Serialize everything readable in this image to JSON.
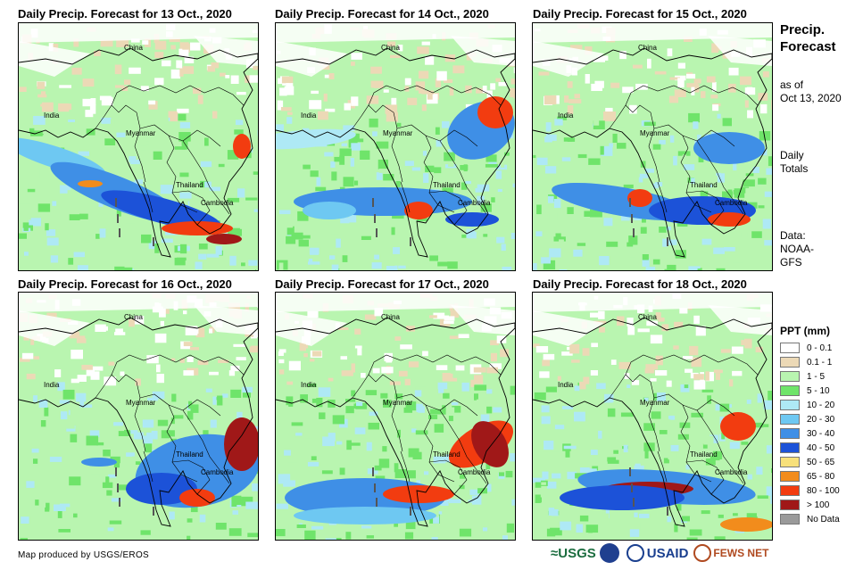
{
  "panels": [
    {
      "title": "Daily Precip. Forecast for 13 Oct., 2020"
    },
    {
      "title": "Daily Precip. Forecast for 14 Oct., 2020"
    },
    {
      "title": "Daily Precip. Forecast for 15 Oct., 2020"
    },
    {
      "title": "Daily Precip. Forecast for 16 Oct., 2020"
    },
    {
      "title": "Daily Precip. Forecast for 17 Oct., 2020"
    },
    {
      "title": "Daily Precip. Forecast for 18 Oct., 2020"
    }
  ],
  "map_labels": {
    "china": "China",
    "india": "India",
    "myanmar": "Myanmar",
    "thailand": "Thailand",
    "cambodia": "Cambodia"
  },
  "sidebar": {
    "title_line1": "Precip.",
    "title_line2": "Forecast",
    "asof_line1": "as of",
    "asof_line2": "Oct 13, 2020",
    "daily_line1": "Daily",
    "daily_line2": "Totals",
    "data_line1": "Data:",
    "data_line2": "NOAA-",
    "data_line3": "GFS"
  },
  "legend": {
    "title": "PPT (mm)",
    "items": [
      {
        "label": "0 - 0.1",
        "color": "#ffffff"
      },
      {
        "label": "0.1 - 1",
        "color": "#ecd9b6"
      },
      {
        "label": "1 - 5",
        "color": "#b9f5b0"
      },
      {
        "label": "5 - 10",
        "color": "#6fe46a"
      },
      {
        "label": "10 - 20",
        "color": "#aee9f5"
      },
      {
        "label": "20 - 30",
        "color": "#6ec8f2"
      },
      {
        "label": "30 - 40",
        "color": "#3f8fe6"
      },
      {
        "label": "40 - 50",
        "color": "#1c52d8"
      },
      {
        "label": "50 - 65",
        "color": "#f7e07a"
      },
      {
        "label": "65 - 80",
        "color": "#f28c1c"
      },
      {
        "label": "80 - 100",
        "color": "#f23c10"
      },
      {
        "label": "> 100",
        "color": "#a01818"
      },
      {
        "label": "No Data",
        "color": "#9a9a9a"
      }
    ]
  },
  "footer": {
    "credit": "Map produced by USGS/EROS",
    "logo_usgs": "≈USGS",
    "logo_usaid": "USAID",
    "logo_fews": "FEWS NET"
  }
}
